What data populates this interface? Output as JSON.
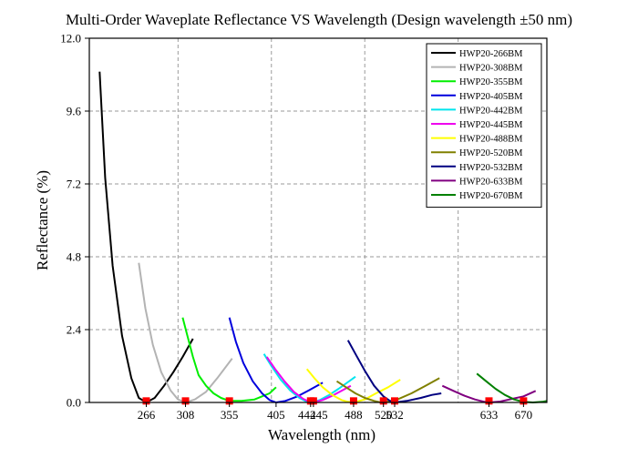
{
  "chart_data": {
    "type": "line",
    "title": "Multi-Order Waveplate Reflectance VS Wavelength (Design wavelength ±50 nm)",
    "xlabel": "Wavelength (nm)",
    "ylabel": "Reflectance (%)",
    "xlim": [
      205,
      695
    ],
    "ylim": [
      0,
      12.0
    ],
    "y_ticks": [
      "0.0",
      "2.4",
      "4.8",
      "7.2",
      "9.6",
      "12.0"
    ],
    "x_ticks": [
      266,
      308,
      355,
      405,
      442,
      445,
      488,
      520,
      532,
      633,
      670
    ],
    "grid": true,
    "legend_position": "top-right",
    "markers": {
      "color": "#ff0000",
      "points": [
        {
          "x": 266,
          "y": 0.05
        },
        {
          "x": 308,
          "y": 0.05
        },
        {
          "x": 355,
          "y": 0.05
        },
        {
          "x": 442,
          "y": 0.05
        },
        {
          "x": 445,
          "y": 0.05
        },
        {
          "x": 488,
          "y": 0.05
        },
        {
          "x": 520,
          "y": 0.05
        },
        {
          "x": 532,
          "y": 0.05
        },
        {
          "x": 633,
          "y": 0.05
        },
        {
          "x": 670,
          "y": 0.05
        }
      ]
    },
    "series": [
      {
        "name": "HWP20-266BM",
        "color": "#000000",
        "x": [
          216,
          222,
          230,
          240,
          250,
          258,
          266,
          275,
          285,
          295,
          305,
          316
        ],
        "y": [
          10.9,
          7.4,
          4.5,
          2.2,
          0.8,
          0.15,
          0.0,
          0.15,
          0.55,
          1.0,
          1.5,
          2.1
        ]
      },
      {
        "name": "HWP20-308BM",
        "color": "#b3b3b3",
        "x": [
          258,
          265,
          273,
          282,
          292,
          300,
          308,
          318,
          330,
          342,
          358
        ],
        "y": [
          4.6,
          3.1,
          1.9,
          1.0,
          0.4,
          0.1,
          0.0,
          0.1,
          0.35,
          0.8,
          1.45
        ]
      },
      {
        "name": "HWP20-355BM",
        "color": "#00ee00",
        "x": [
          305,
          310,
          316,
          322,
          330,
          338,
          346,
          355,
          368,
          382,
          398,
          405
        ],
        "y": [
          2.8,
          2.2,
          1.5,
          0.9,
          0.55,
          0.3,
          0.15,
          0.05,
          0.05,
          0.1,
          0.3,
          0.5
        ]
      },
      {
        "name": "HWP20-405BM",
        "color": "#0000dd",
        "x": [
          355,
          362,
          370,
          380,
          390,
          398,
          405,
          415,
          428,
          440,
          455
        ],
        "y": [
          2.8,
          2.0,
          1.3,
          0.7,
          0.3,
          0.08,
          0.0,
          0.05,
          0.2,
          0.4,
          0.65
        ]
      },
      {
        "name": "HWP20-442BM",
        "color": "#00e5ee",
        "x": [
          392,
          400,
          410,
          420,
          430,
          436,
          442,
          452,
          462,
          472,
          490
        ],
        "y": [
          1.6,
          1.2,
          0.75,
          0.4,
          0.15,
          0.05,
          0.0,
          0.08,
          0.25,
          0.45,
          0.85
        ]
      },
      {
        "name": "HWP20-445BM",
        "color": "#ee00ee",
        "x": [
          395,
          404,
          414,
          424,
          434,
          440,
          445,
          455,
          465,
          475,
          485
        ],
        "y": [
          1.5,
          1.1,
          0.7,
          0.35,
          0.12,
          0.03,
          0.0,
          0.08,
          0.22,
          0.38,
          0.55
        ]
      },
      {
        "name": "HWP20-488BM",
        "color": "#ffff00",
        "x": [
          438,
          446,
          455,
          465,
          475,
          482,
          488,
          500,
          512,
          525,
          538
        ],
        "y": [
          1.1,
          0.8,
          0.5,
          0.25,
          0.08,
          0.02,
          0.0,
          0.1,
          0.3,
          0.5,
          0.75
        ]
      },
      {
        "name": "HWP20-520BM",
        "color": "#808000",
        "x": [
          470,
          480,
          490,
          500,
          510,
          516,
          520,
          535,
          550,
          565,
          580
        ],
        "y": [
          0.7,
          0.5,
          0.3,
          0.15,
          0.05,
          0.01,
          0.0,
          0.1,
          0.3,
          0.55,
          0.8
        ]
      },
      {
        "name": "HWP20-532BM",
        "color": "#000080",
        "x": [
          482,
          490,
          500,
          510,
          520,
          527,
          532,
          545,
          560,
          572,
          582
        ],
        "y": [
          2.05,
          1.6,
          1.05,
          0.55,
          0.2,
          0.05,
          0.0,
          0.05,
          0.15,
          0.25,
          0.3
        ]
      },
      {
        "name": "HWP20-633BM",
        "color": "#800080",
        "x": [
          583,
          595,
          607,
          618,
          628,
          633,
          645,
          658,
          670,
          683
        ],
        "y": [
          0.55,
          0.38,
          0.22,
          0.1,
          0.02,
          0.0,
          0.03,
          0.12,
          0.2,
          0.38
        ]
      },
      {
        "name": "HWP20-670BM",
        "color": "#008000",
        "x": [
          620,
          630,
          640,
          650,
          660,
          670,
          680,
          690,
          695
        ],
        "y": [
          0.95,
          0.7,
          0.45,
          0.25,
          0.1,
          0.02,
          0.0,
          0.02,
          0.05
        ]
      }
    ]
  }
}
